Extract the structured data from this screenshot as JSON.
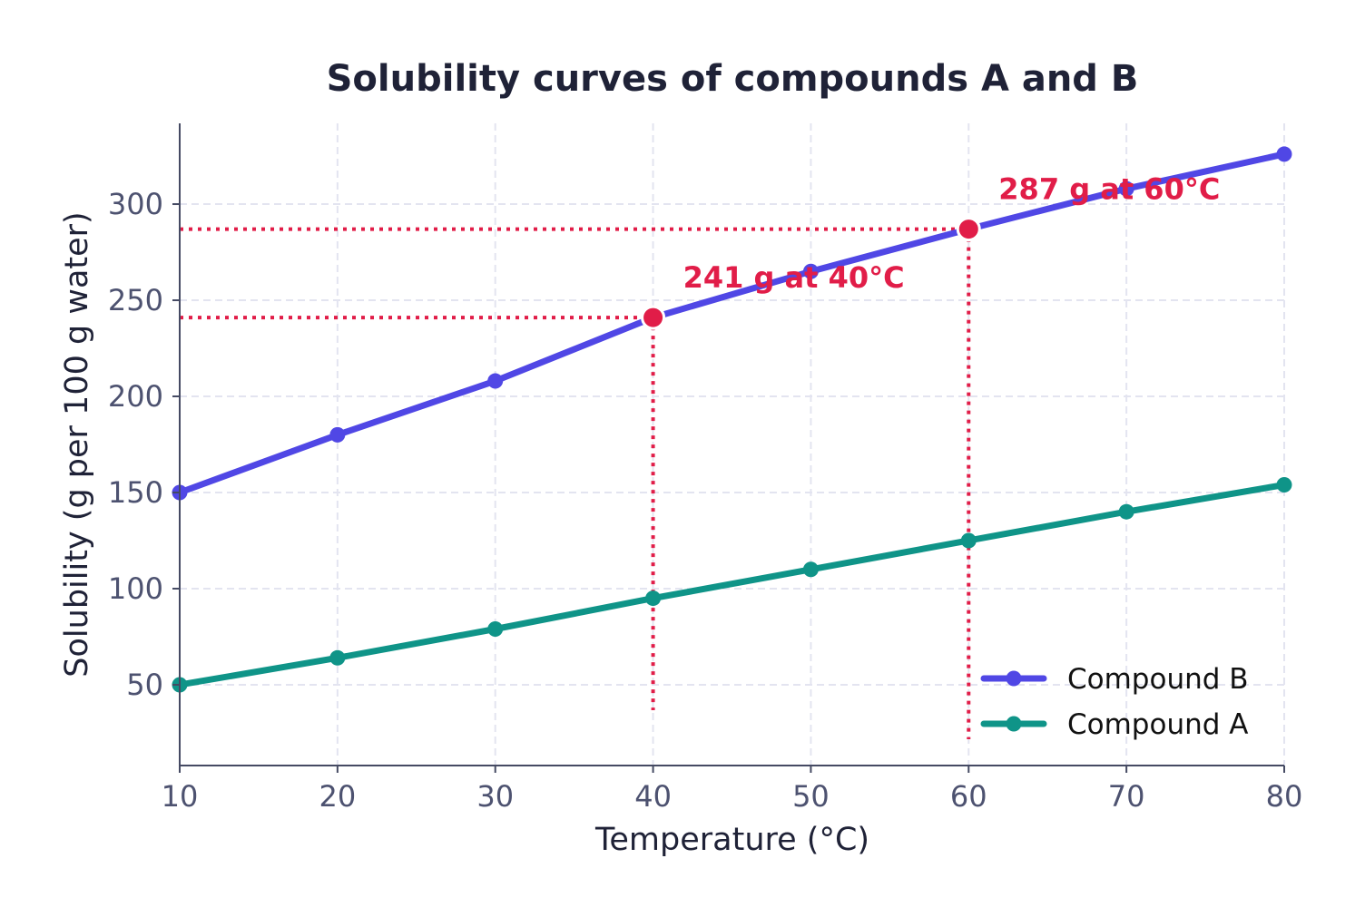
{
  "chart_data": {
    "type": "line",
    "title": "Solubility curves of compounds A and B",
    "xlabel": "Temperature (°C)",
    "ylabel": "Solubility (g per 100 g water)",
    "xlim": [
      10,
      80
    ],
    "ylim": [
      8,
      342
    ],
    "xticks": [
      10,
      20,
      30,
      40,
      50,
      60,
      70,
      80
    ],
    "yticks": [
      50,
      100,
      150,
      200,
      250,
      300
    ],
    "grid": true,
    "legend_position": "bottom-right",
    "x": [
      10,
      20,
      30,
      40,
      50,
      60,
      70,
      80
    ],
    "series": [
      {
        "name": "Compound B",
        "color": "#5047e5",
        "values": [
          150,
          180,
          208,
          241,
          265,
          287,
          308,
          326
        ]
      },
      {
        "name": "Compound A",
        "color": "#0f9488",
        "values": [
          50,
          64,
          79,
          95,
          110,
          125,
          140,
          154
        ]
      }
    ],
    "annotations": [
      {
        "x": 40,
        "y": 241,
        "text": "241 g at 40°C",
        "color": "#e11d48"
      },
      {
        "x": 60,
        "y": 287,
        "text": "287 g at 60°C",
        "color": "#e11d48"
      }
    ]
  }
}
